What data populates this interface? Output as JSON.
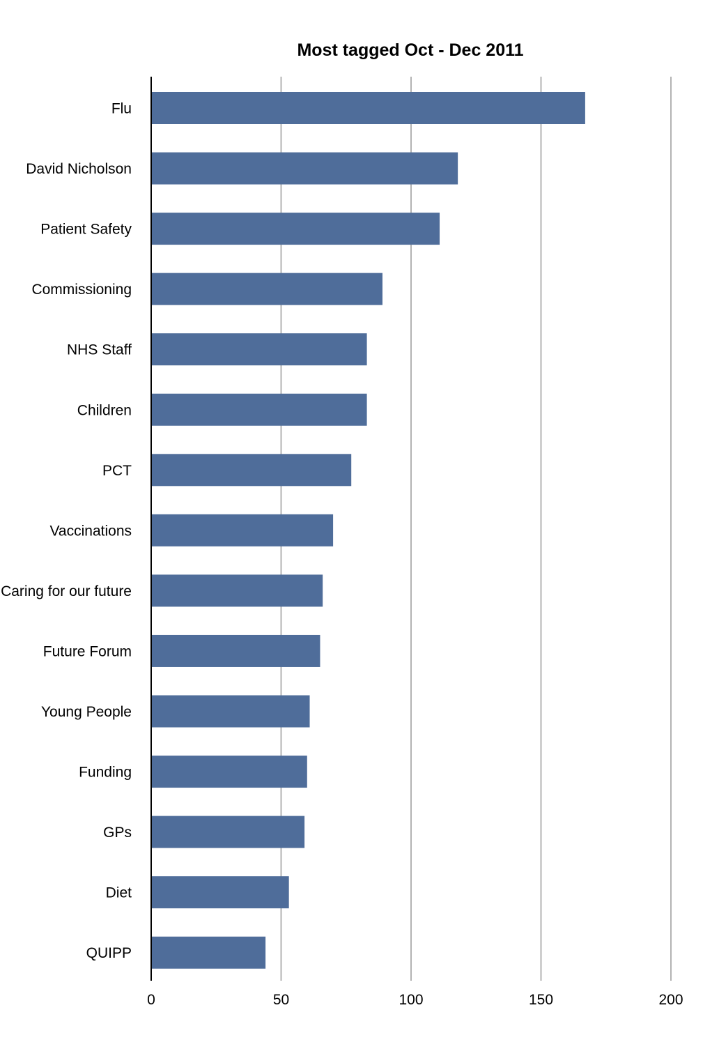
{
  "chart_data": {
    "type": "bar",
    "orientation": "horizontal",
    "title": "Most tagged Oct - Dec 2011",
    "xlabel": "",
    "ylabel": "",
    "categories": [
      "Flu",
      "David Nicholson",
      "Patient Safety",
      "Commissioning",
      "NHS Staff",
      "Children",
      "PCT",
      "Vaccinations",
      "Caring for our future",
      "Future Forum",
      "Young People",
      "Funding",
      "GPs",
      "Diet",
      "QUIPP"
    ],
    "values": [
      167,
      118,
      111,
      89,
      83,
      83,
      77,
      70,
      66,
      65,
      61,
      60,
      59,
      53,
      44
    ],
    "xlim": [
      0,
      200
    ],
    "x_ticks": [
      "0",
      "50",
      "100",
      "150",
      "200"
    ],
    "x_tick_values": [
      0,
      50,
      100,
      150,
      200
    ],
    "grid": true,
    "bar_color": "#4f6d9a",
    "grid_color": "#b3b3b3",
    "axis_color": "#000000"
  }
}
